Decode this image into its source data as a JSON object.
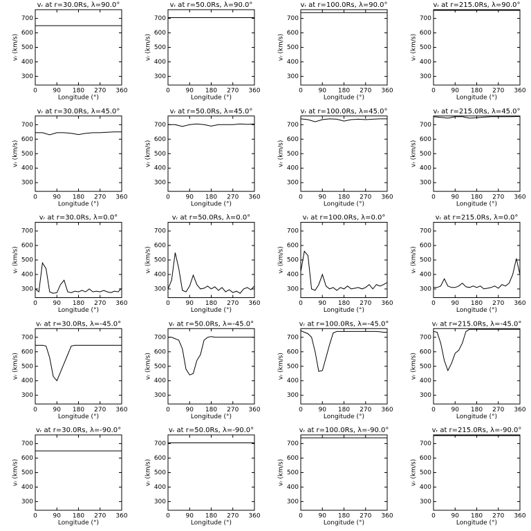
{
  "chart_data": [
    {
      "type": "line",
      "title": "vᵣ at r=30.0Rs, λ=90.0°",
      "xlabel": "Longitude (°)",
      "ylabel": "vᵣ (km/s)",
      "x": [
        0,
        360
      ],
      "values": [
        650,
        650
      ],
      "color": "#000000",
      "xlim": [
        0,
        360
      ],
      "ylim": [
        240,
        760
      ],
      "xticks": [
        0,
        90,
        180,
        270,
        360
      ],
      "yticks": [
        300,
        400,
        500,
        600,
        700
      ]
    },
    {
      "type": "line",
      "title": "vᵣ at r=50.0Rs, λ=90.0°",
      "xlabel": "Longitude (°)",
      "ylabel": "vᵣ (km/s)",
      "x": [
        0,
        360
      ],
      "values": [
        705,
        705
      ],
      "color": "#000000",
      "xlim": [
        0,
        360
      ],
      "ylim": [
        240,
        760
      ],
      "xticks": [
        0,
        90,
        180,
        270,
        360
      ],
      "yticks": [
        300,
        400,
        500,
        600,
        700
      ]
    },
    {
      "type": "line",
      "title": "vᵣ at r=100.0Rs, λ=90.0°",
      "xlabel": "Longitude (°)",
      "ylabel": "vᵣ (km/s)",
      "x": [
        0,
        360
      ],
      "values": [
        740,
        740
      ],
      "color": "#000000",
      "xlim": [
        0,
        360
      ],
      "ylim": [
        240,
        760
      ],
      "xticks": [
        0,
        90,
        180,
        270,
        360
      ],
      "yticks": [
        300,
        400,
        500,
        600,
        700
      ]
    },
    {
      "type": "line",
      "title": "vᵣ at r=215.0Rs, λ=90.0°",
      "xlabel": "Longitude (°)",
      "ylabel": "vᵣ (km/s)",
      "x": [
        0,
        360
      ],
      "values": [
        755,
        755
      ],
      "color": "#000000",
      "xlim": [
        0,
        360
      ],
      "ylim": [
        240,
        760
      ],
      "xticks": [
        0,
        90,
        180,
        270,
        360
      ],
      "yticks": [
        300,
        400,
        500,
        600,
        700
      ]
    },
    {
      "type": "line",
      "title": "vᵣ at r=30.0Rs, λ=45.0°",
      "xlabel": "Longitude (°)",
      "ylabel": "vᵣ (km/s)",
      "x": [
        0,
        30,
        60,
        90,
        120,
        150,
        180,
        210,
        240,
        270,
        300,
        330,
        360
      ],
      "values": [
        645,
        645,
        630,
        645,
        645,
        640,
        632,
        640,
        645,
        645,
        648,
        650,
        650
      ],
      "color": "#000000",
      "xlim": [
        0,
        360
      ],
      "ylim": [
        240,
        760
      ],
      "xticks": [
        0,
        90,
        180,
        270,
        360
      ],
      "yticks": [
        300,
        400,
        500,
        600,
        700
      ]
    },
    {
      "type": "line",
      "title": "vᵣ at r=50.0Rs, λ=45.0°",
      "xlabel": "Longitude (°)",
      "ylabel": "vᵣ (km/s)",
      "x": [
        0,
        30,
        60,
        90,
        120,
        150,
        180,
        210,
        240,
        270,
        300,
        330,
        360
      ],
      "values": [
        700,
        700,
        688,
        700,
        705,
        700,
        690,
        700,
        700,
        700,
        705,
        702,
        705
      ],
      "color": "#000000",
      "xlim": [
        0,
        360
      ],
      "ylim": [
        240,
        760
      ],
      "xticks": [
        0,
        90,
        180,
        270,
        360
      ],
      "yticks": [
        300,
        400,
        500,
        600,
        700
      ]
    },
    {
      "type": "line",
      "title": "vᵣ at r=100.0Rs, λ=45.0°",
      "xlabel": "Longitude (°)",
      "ylabel": "vᵣ (km/s)",
      "x": [
        0,
        30,
        60,
        90,
        120,
        150,
        180,
        210,
        240,
        270,
        300,
        330,
        360
      ],
      "values": [
        740,
        735,
        720,
        735,
        740,
        738,
        725,
        735,
        738,
        735,
        738,
        740,
        740
      ],
      "color": "#000000",
      "xlim": [
        0,
        360
      ],
      "ylim": [
        240,
        760
      ],
      "xticks": [
        0,
        90,
        180,
        270,
        360
      ],
      "yticks": [
        300,
        400,
        500,
        600,
        700
      ]
    },
    {
      "type": "line",
      "title": "vᵣ at r=215.0Rs, λ=45.0°",
      "xlabel": "Longitude (°)",
      "ylabel": "vᵣ (km/s)",
      "x": [
        0,
        30,
        60,
        90,
        120,
        150,
        180,
        210,
        240,
        270,
        300,
        330,
        360
      ],
      "values": [
        755,
        750,
        745,
        755,
        755,
        745,
        748,
        752,
        755,
        755,
        755,
        755,
        757
      ],
      "color": "#000000",
      "xlim": [
        0,
        360
      ],
      "ylim": [
        240,
        760
      ],
      "xticks": [
        0,
        90,
        180,
        270,
        360
      ],
      "yticks": [
        300,
        400,
        500,
        600,
        700
      ]
    },
    {
      "type": "line",
      "title": "vᵣ at r=30.0Rs, λ=0.0°",
      "xlabel": "Longitude (°)",
      "ylabel": "vᵣ (km/s)",
      "x": [
        0,
        15,
        30,
        45,
        60,
        75,
        90,
        105,
        120,
        135,
        150,
        165,
        180,
        195,
        210,
        225,
        240,
        255,
        270,
        285,
        300,
        315,
        330,
        345,
        360
      ],
      "values": [
        300,
        280,
        480,
        440,
        280,
        270,
        275,
        330,
        360,
        280,
        275,
        285,
        280,
        290,
        280,
        300,
        280,
        285,
        280,
        290,
        280,
        275,
        285,
        280,
        305
      ],
      "color": "#000000",
      "xlim": [
        0,
        360
      ],
      "ylim": [
        240,
        760
      ],
      "xticks": [
        0,
        90,
        180,
        270,
        360
      ],
      "yticks": [
        300,
        400,
        500,
        600,
        700
      ]
    },
    {
      "type": "line",
      "title": "vᵣ at r=50.0Rs, λ=0.0°",
      "xlabel": "Longitude (°)",
      "ylabel": "vᵣ (km/s)",
      "x": [
        0,
        15,
        30,
        45,
        60,
        75,
        90,
        105,
        120,
        135,
        150,
        165,
        180,
        195,
        210,
        225,
        240,
        255,
        270,
        285,
        300,
        315,
        330,
        345,
        360
      ],
      "values": [
        300,
        360,
        550,
        440,
        290,
        280,
        320,
        395,
        330,
        300,
        305,
        320,
        300,
        315,
        290,
        310,
        280,
        295,
        275,
        285,
        270,
        300,
        310,
        295,
        320
      ],
      "color": "#000000",
      "xlim": [
        0,
        360
      ],
      "ylim": [
        240,
        760
      ],
      "xticks": [
        0,
        90,
        180,
        270,
        360
      ],
      "yticks": [
        300,
        400,
        500,
        600,
        700
      ]
    },
    {
      "type": "line",
      "title": "vᵣ at r=100.0Rs, λ=0.0°",
      "xlabel": "Longitude (°)",
      "ylabel": "vᵣ (km/s)",
      "x": [
        0,
        15,
        30,
        45,
        60,
        75,
        90,
        105,
        120,
        135,
        150,
        165,
        180,
        195,
        210,
        225,
        240,
        255,
        270,
        285,
        300,
        315,
        330,
        345,
        360
      ],
      "values": [
        420,
        560,
        530,
        300,
        290,
        330,
        400,
        320,
        300,
        310,
        290,
        310,
        300,
        320,
        300,
        305,
        310,
        300,
        310,
        330,
        300,
        330,
        320,
        330,
        345
      ],
      "color": "#000000",
      "xlim": [
        0,
        360
      ],
      "ylim": [
        240,
        760
      ],
      "xticks": [
        0,
        90,
        180,
        270,
        360
      ],
      "yticks": [
        300,
        400,
        500,
        600,
        700
      ]
    },
    {
      "type": "line",
      "title": "vᵣ at r=215.0Rs, λ=0.0°",
      "xlabel": "Longitude (°)",
      "ylabel": "vᵣ (km/s)",
      "x": [
        0,
        15,
        30,
        45,
        60,
        75,
        90,
        105,
        120,
        135,
        150,
        165,
        180,
        195,
        210,
        225,
        240,
        255,
        270,
        285,
        300,
        315,
        330,
        345,
        360
      ],
      "values": [
        310,
        310,
        320,
        370,
        320,
        310,
        310,
        320,
        340,
        315,
        310,
        320,
        310,
        320,
        300,
        305,
        310,
        320,
        305,
        330,
        320,
        340,
        400,
        510,
        400
      ],
      "color": "#000000",
      "xlim": [
        0,
        360
      ],
      "ylim": [
        240,
        760
      ],
      "xticks": [
        0,
        90,
        180,
        270,
        360
      ],
      "yticks": [
        300,
        400,
        500,
        600,
        700
      ]
    },
    {
      "type": "line",
      "title": "vᵣ at r=30.0Rs, λ=-45.0°",
      "xlabel": "Longitude (°)",
      "ylabel": "vᵣ (km/s)",
      "x": [
        0,
        15,
        30,
        45,
        60,
        75,
        90,
        105,
        120,
        135,
        150,
        165,
        180,
        195,
        210,
        225,
        240,
        255,
        270,
        285,
        300,
        315,
        330,
        345,
        360
      ],
      "values": [
        645,
        645,
        645,
        640,
        560,
        430,
        400,
        460,
        520,
        580,
        640,
        645,
        645,
        645,
        645,
        645,
        645,
        645,
        645,
        645,
        645,
        645,
        645,
        645,
        645
      ],
      "color": "#000000",
      "xlim": [
        0,
        360
      ],
      "ylim": [
        240,
        760
      ],
      "xticks": [
        0,
        90,
        180,
        270,
        360
      ],
      "yticks": [
        300,
        400,
        500,
        600,
        700
      ]
    },
    {
      "type": "line",
      "title": "vᵣ at r=50.0Rs, λ=-45.0°",
      "xlabel": "Longitude (°)",
      "ylabel": "vᵣ (km/s)",
      "x": [
        0,
        15,
        30,
        45,
        60,
        75,
        90,
        105,
        120,
        135,
        150,
        165,
        180,
        195,
        210,
        225,
        240,
        255,
        270,
        285,
        300,
        315,
        330,
        345,
        360
      ],
      "values": [
        700,
        700,
        690,
        680,
        620,
        480,
        440,
        450,
        540,
        580,
        680,
        700,
        705,
        700,
        700,
        700,
        700,
        700,
        700,
        700,
        700,
        700,
        700,
        700,
        700
      ],
      "color": "#000000",
      "xlim": [
        0,
        360
      ],
      "ylim": [
        240,
        760
      ],
      "xticks": [
        0,
        90,
        180,
        270,
        360
      ],
      "yticks": [
        300,
        400,
        500,
        600,
        700
      ]
    },
    {
      "type": "line",
      "title": "vᵣ at r=100.0Rs, λ=-45.0°",
      "xlabel": "Longitude (°)",
      "ylabel": "vᵣ (km/s)",
      "x": [
        0,
        15,
        30,
        45,
        60,
        75,
        90,
        105,
        120,
        135,
        150,
        165,
        180,
        195,
        210,
        225,
        240,
        255,
        270,
        285,
        300,
        315,
        330,
        345,
        360
      ],
      "values": [
        745,
        735,
        725,
        700,
        600,
        465,
        470,
        560,
        650,
        730,
        740,
        740,
        740,
        740,
        740,
        740,
        740,
        740,
        740,
        740,
        740,
        740,
        738,
        735,
        735
      ],
      "color": "#000000",
      "xlim": [
        0,
        360
      ],
      "ylim": [
        240,
        760
      ],
      "xticks": [
        0,
        90,
        180,
        270,
        360
      ],
      "yticks": [
        300,
        400,
        500,
        600,
        700
      ]
    },
    {
      "type": "line",
      "title": "vᵣ at r=215.0Rs, λ=-45.0°",
      "xlabel": "Longitude (°)",
      "ylabel": "vᵣ (km/s)",
      "x": [
        0,
        15,
        30,
        45,
        60,
        75,
        90,
        105,
        120,
        135,
        150,
        165,
        180,
        195,
        210,
        225,
        240,
        255,
        270,
        285,
        300,
        315,
        330,
        345,
        360
      ],
      "values": [
        740,
        735,
        660,
        540,
        470,
        520,
        590,
        610,
        660,
        740,
        755,
        755,
        755,
        755,
        755,
        755,
        755,
        755,
        755,
        755,
        755,
        755,
        755,
        755,
        755
      ],
      "color": "#000000",
      "xlim": [
        0,
        360
      ],
      "ylim": [
        240,
        760
      ],
      "xticks": [
        0,
        90,
        180,
        270,
        360
      ],
      "yticks": [
        300,
        400,
        500,
        600,
        700
      ]
    },
    {
      "type": "line",
      "title": "vᵣ at r=30.0Rs, λ=-90.0°",
      "xlabel": "Longitude (°)",
      "ylabel": "vᵣ (km/s)",
      "x": [
        0,
        360
      ],
      "values": [
        650,
        650
      ],
      "color": "#000000",
      "xlim": [
        0,
        360
      ],
      "ylim": [
        240,
        760
      ],
      "xticks": [
        0,
        90,
        180,
        270,
        360
      ],
      "yticks": [
        300,
        400,
        500,
        600,
        700
      ]
    },
    {
      "type": "line",
      "title": "vᵣ at r=50.0Rs, λ=-90.0°",
      "xlabel": "Longitude (°)",
      "ylabel": "vᵣ (km/s)",
      "x": [
        0,
        360
      ],
      "values": [
        705,
        705
      ],
      "color": "#000000",
      "xlim": [
        0,
        360
      ],
      "ylim": [
        240,
        760
      ],
      "xticks": [
        0,
        90,
        180,
        270,
        360
      ],
      "yticks": [
        300,
        400,
        500,
        600,
        700
      ]
    },
    {
      "type": "line",
      "title": "vᵣ at r=100.0Rs, λ=-90.0°",
      "xlabel": "Longitude (°)",
      "ylabel": "vᵣ (km/s)",
      "x": [
        0,
        360
      ],
      "values": [
        740,
        740
      ],
      "color": "#000000",
      "xlim": [
        0,
        360
      ],
      "ylim": [
        240,
        760
      ],
      "xticks": [
        0,
        90,
        180,
        270,
        360
      ],
      "yticks": [
        300,
        400,
        500,
        600,
        700
      ]
    },
    {
      "type": "line",
      "title": "vᵣ at r=215.0Rs, λ=-90.0°",
      "xlabel": "Longitude (°)",
      "ylabel": "vᵣ (km/s)",
      "x": [
        0,
        360
      ],
      "values": [
        755,
        755
      ],
      "color": "#000000",
      "xlim": [
        0,
        360
      ],
      "ylim": [
        240,
        760
      ],
      "xticks": [
        0,
        90,
        180,
        270,
        360
      ],
      "yticks": [
        300,
        400,
        500,
        600,
        700
      ]
    }
  ]
}
